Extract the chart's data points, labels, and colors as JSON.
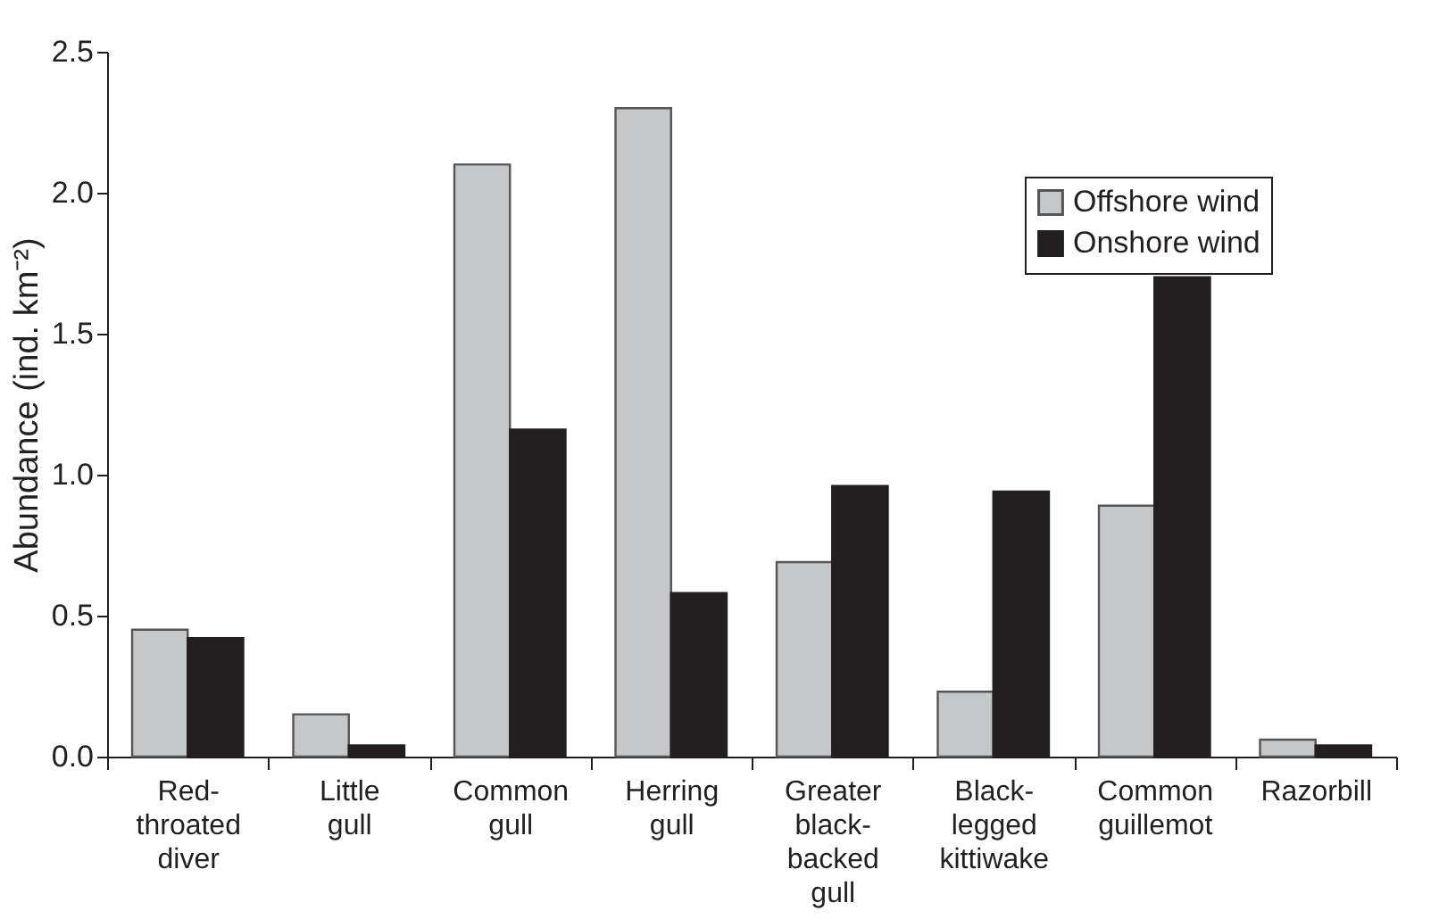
{
  "chart_data": {
    "type": "bar",
    "categories": [
      "Red-throated diver",
      "Little gull",
      "Common gull",
      "Herring gull",
      "Greater black-backed gull",
      "Black-legged kittiwake",
      "Common guillemot",
      "Razorbill"
    ],
    "series": [
      {
        "name": "Offshore wind",
        "color": "#c6c7c8",
        "values": [
          0.45,
          0.15,
          2.1,
          2.3,
          0.69,
          0.23,
          0.89,
          0.06
        ]
      },
      {
        "name": "Onshore wind",
        "color": "#231f20",
        "values": [
          0.42,
          0.04,
          1.16,
          0.58,
          0.96,
          0.94,
          1.7,
          0.04
        ]
      }
    ],
    "ylabel": "Abundance (ind. km⁻²)",
    "ylim": [
      0,
      2.5
    ],
    "yticks": [
      {
        "value": 0,
        "label": "0.0"
      },
      0.5,
      {
        "value": 1,
        "label": "1.0"
      },
      1.5,
      {
        "value": 2,
        "label": "2.0"
      },
      2.5
    ],
    "grid": false,
    "legend": "top right"
  }
}
